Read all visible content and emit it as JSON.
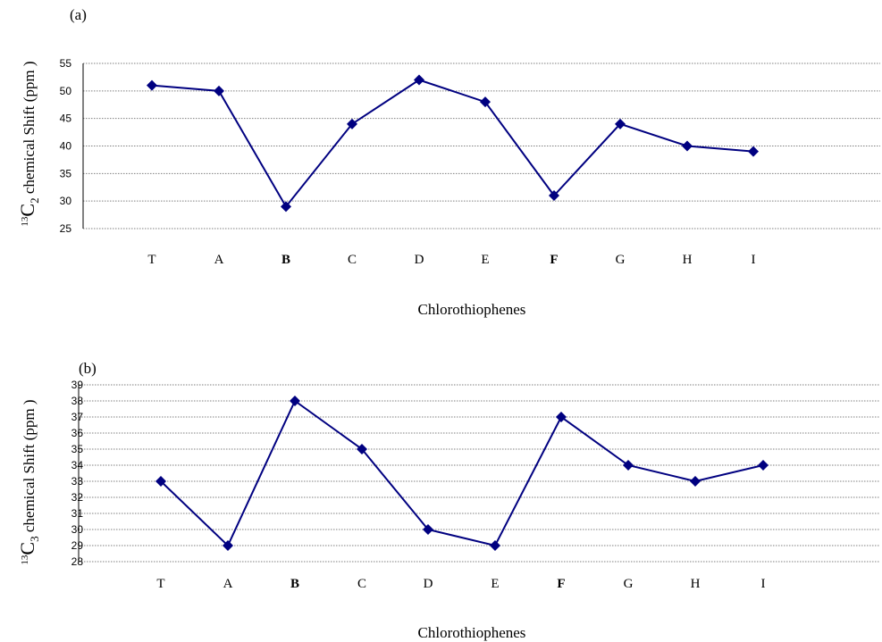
{
  "chart_data": [
    {
      "type": "line",
      "panel_label": "(a)",
      "categories": [
        "T",
        "A",
        "B",
        "C",
        "D",
        "E",
        "F",
        "G",
        "H",
        "I"
      ],
      "bold_categories": [
        "B",
        "F"
      ],
      "values": [
        51,
        50,
        29,
        44,
        52,
        48,
        31,
        44,
        40,
        39
      ],
      "xlabel": "Chlorothiophenes",
      "ylabel": {
        "prefix_sup": "13",
        "main": "C",
        "sub": "2",
        "rest": " chemical Shift (ppm )"
      },
      "ylim": [
        25,
        55
      ],
      "yticks": [
        25,
        30,
        35,
        40,
        45,
        50,
        55
      ],
      "grid": true,
      "line_color": "#000080"
    },
    {
      "type": "line",
      "panel_label": "(b)",
      "categories": [
        "T",
        "A",
        "B",
        "C",
        "D",
        "E",
        "F",
        "G",
        "H",
        "I"
      ],
      "bold_categories": [
        "B",
        "F"
      ],
      "values": [
        33,
        29,
        38,
        35,
        30,
        29,
        37,
        34,
        33,
        34
      ],
      "xlabel": "Chlorothiophenes",
      "ylabel": {
        "prefix_sup": "13",
        "main": "C",
        "sub": "3",
        "rest": " chemical Shift (ppm )"
      },
      "ylim": [
        28,
        39
      ],
      "yticks": [
        28,
        29,
        30,
        31,
        32,
        33,
        34,
        35,
        36,
        37,
        38,
        39
      ],
      "grid": true,
      "line_color": "#000080"
    }
  ]
}
